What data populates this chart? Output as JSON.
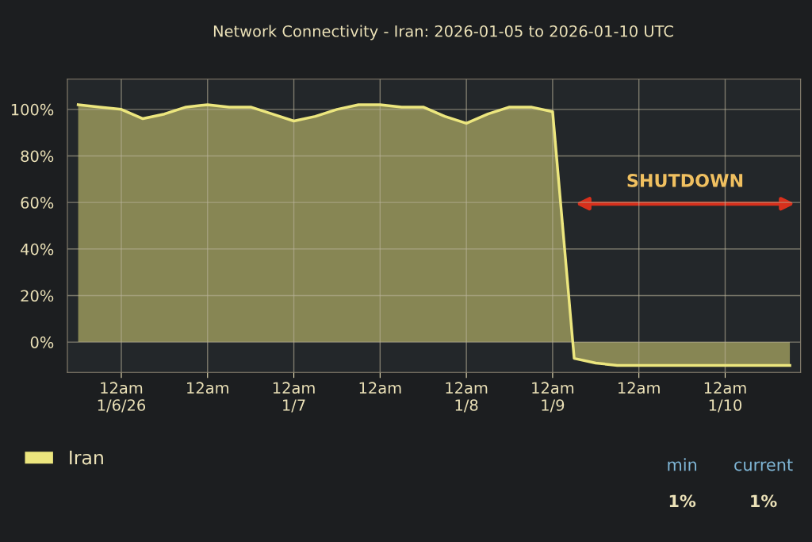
{
  "chart_data": {
    "type": "area",
    "title": "Network Connectivity - Iran: 2026-01-05 to 2026-01-10 UTC",
    "categories": [
      null,
      null,
      "12am\n1/6/26",
      null,
      null,
      null,
      "12am",
      null,
      null,
      null,
      "12am\n1/7",
      null,
      null,
      null,
      "12am",
      null,
      null,
      null,
      "12am\n1/8",
      null,
      null,
      null,
      "12am\n1/9",
      null,
      null,
      null,
      "12am",
      null,
      null,
      null,
      "12am\n1/10",
      null,
      null,
      null
    ],
    "series": [
      {
        "name": "Iran",
        "color": "#ece67e",
        "values": [
          102,
          101,
          100,
          96,
          98,
          101,
          102,
          101,
          101,
          98,
          95,
          97,
          100,
          102,
          102,
          101,
          101,
          97,
          94,
          98,
          101,
          101,
          99,
          -7,
          -9,
          -10,
          -10,
          -10,
          -10,
          -10,
          -10,
          -10,
          -10,
          -10
        ]
      }
    ],
    "ylim": [
      -13,
      113
    ],
    "yticks": [
      {
        "value": 0,
        "label": "0%"
      },
      {
        "value": 20,
        "label": "20%"
      },
      {
        "value": 40,
        "label": "40%"
      },
      {
        "value": 60,
        "label": "60%"
      },
      {
        "value": 80,
        "label": "80%"
      },
      {
        "value": 100,
        "label": "100%"
      }
    ],
    "grid": true,
    "legend": "bottom",
    "annotations": [
      "SHUTDOWN",
      "min",
      "current",
      "1%",
      "1%"
    ]
  }
}
